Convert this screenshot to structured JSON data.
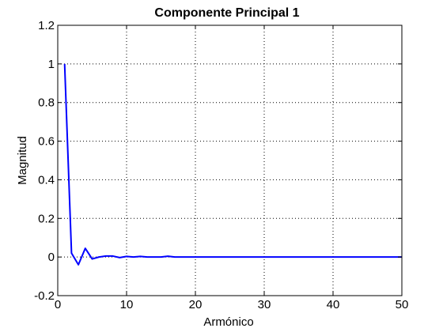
{
  "chart_data": {
    "type": "line",
    "title": "Componente Principal 1",
    "xlabel": "Armónico",
    "ylabel": "Magnitud",
    "xlim": [
      0,
      50
    ],
    "ylim": [
      -0.2,
      1.2
    ],
    "x_ticks": [
      0,
      10,
      20,
      30,
      40,
      50
    ],
    "y_ticks": [
      -0.2,
      0,
      0.2,
      0.4,
      0.6,
      0.8,
      1,
      1.2
    ],
    "x_tick_labels": [
      "0",
      "10",
      "20",
      "30",
      "40",
      "50"
    ],
    "y_tick_labels": [
      "-0.2",
      "0",
      "0.2",
      "0.4",
      "0.6",
      "0.8",
      "1",
      "1.2"
    ],
    "grid": true,
    "series": [
      {
        "color": "#0000ff",
        "x": [
          1,
          2,
          3,
          4,
          5,
          6,
          7,
          8,
          9,
          10,
          11,
          12,
          13,
          14,
          15,
          16,
          17,
          18,
          19,
          20,
          21,
          22,
          23,
          24,
          25,
          26,
          27,
          28,
          29,
          30,
          31,
          32,
          33,
          34,
          35,
          36,
          37,
          38,
          39,
          40,
          41,
          42,
          43,
          44,
          45,
          46,
          47,
          48,
          49,
          50
        ],
        "y": [
          1.0,
          0.02,
          -0.04,
          0.045,
          -0.01,
          0.0,
          0.005,
          0.005,
          -0.003,
          0.003,
          0.0,
          0.003,
          0.0,
          0.0,
          0.0,
          0.004,
          0.0,
          0.0,
          0.0,
          0.0,
          0.0,
          0.0,
          0.0,
          0.0,
          0.0,
          0.0,
          0.0,
          0.0,
          0.0,
          0.0,
          0.0,
          0.0,
          0.0,
          0.0,
          0.0,
          0.0,
          0.0,
          0.0,
          0.0,
          0.0,
          0.0,
          0.0,
          0.0,
          0.0,
          0.0,
          0.0,
          0.0,
          0.0,
          0.0,
          0.0
        ]
      }
    ]
  }
}
